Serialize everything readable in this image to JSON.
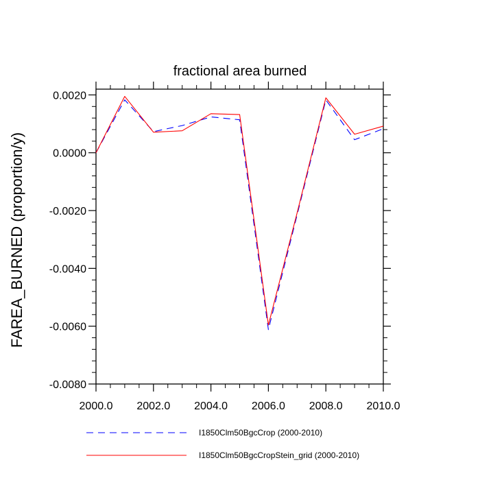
{
  "chart_data": {
    "type": "line",
    "title": "fractional area burned",
    "xlabel": "",
    "ylabel": "FAREA_BURNED  (proportion/y)",
    "xlim": [
      2000,
      2010
    ],
    "ylim": [
      -0.008,
      0.0022
    ],
    "x_ticks": [
      "2000.0",
      "2002.0",
      "2004.0",
      "2006.0",
      "2008.0",
      "2010.0"
    ],
    "y_ticks": [
      "0.0020",
      "0.0000",
      "-0.0020",
      "-0.0040",
      "-0.0060",
      "-0.0080"
    ],
    "grid": false,
    "legend_position": "bottom",
    "x": [
      2000,
      2001,
      2002,
      2003,
      2004,
      2005,
      2006,
      2007,
      2008,
      2009,
      2010
    ],
    "series": [
      {
        "name": "I1850Clm50BgcCrop (2000-2010)",
        "color": "#0000ff",
        "style": "dashed",
        "values": [
          0.0,
          0.00183,
          0.00073,
          0.00094,
          0.00124,
          0.00114,
          -0.00612,
          -0.00215,
          0.00183,
          0.00045,
          0.00083
        ]
      },
      {
        "name": "I1850Clm50BgcCropStein_grid (2000-2010)",
        "color": "#ff0000",
        "style": "solid",
        "values": [
          0.0,
          0.00195,
          0.00071,
          0.00076,
          0.00135,
          0.00132,
          -0.00596,
          -0.00208,
          0.0019,
          0.00064,
          0.00092
        ]
      }
    ]
  }
}
